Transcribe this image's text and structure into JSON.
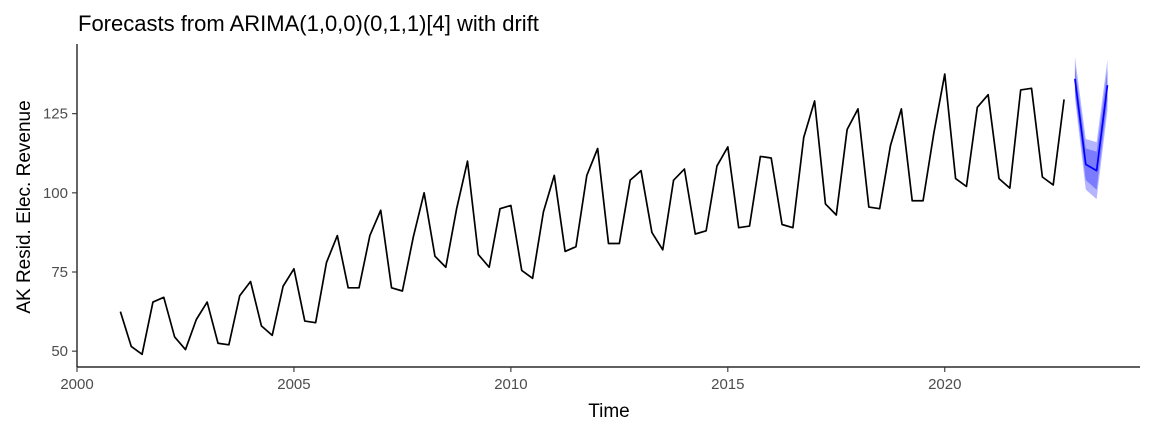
{
  "chart_data": {
    "type": "line",
    "title": "Forecasts from ARIMA(1,0,0)(0,1,1)[4] with drift",
    "xlabel": "Time",
    "ylabel": "AK Resid. Elec. Revenue",
    "xlim": [
      2000,
      2024.5
    ],
    "ylim": [
      45,
      147
    ],
    "x_ticks": [
      2000,
      2005,
      2010,
      2015,
      2020
    ],
    "y_ticks": [
      50,
      75,
      100,
      125
    ],
    "grid": false,
    "legend": "none",
    "series": [
      {
        "role": "history",
        "color": "#000000",
        "start": 2001.0,
        "frequency": 4,
        "values": [
          62.5,
          51.5,
          49.0,
          65.5,
          67.0,
          54.5,
          50.5,
          60.0,
          65.5,
          52.5,
          52.0,
          67.5,
          72.0,
          58.0,
          55.0,
          70.5,
          76.0,
          59.5,
          59.0,
          78.0,
          86.5,
          70.0,
          70.0,
          86.5,
          94.5,
          70.0,
          69.0,
          86.0,
          100.0,
          80.0,
          76.5,
          95.0,
          110.0,
          80.5,
          76.5,
          95.0,
          96.0,
          75.5,
          73.0,
          94.0,
          105.5,
          81.5,
          83.0,
          105.5,
          114.0,
          84.0,
          84.0,
          104.0,
          107.0,
          87.5,
          82.0,
          104.0,
          107.5,
          87.0,
          88.0,
          108.5,
          114.5,
          89.0,
          89.5,
          111.5,
          111.0,
          90.0,
          89.0,
          117.5,
          129.0,
          96.5,
          93.0,
          120.0,
          126.5,
          95.5,
          95.0,
          115.0,
          126.5,
          97.5,
          97.5,
          119.0,
          137.5,
          104.5,
          102.0,
          127.0,
          131.0,
          104.5,
          101.5,
          132.5,
          133.0,
          105.0,
          102.5,
          129.5
        ]
      },
      {
        "role": "forecast",
        "color": "#0000ff",
        "start": 2023.0,
        "frequency": 4,
        "values": [
          136.0,
          109.0,
          107.0,
          134.0
        ],
        "interval_80": {
          "color": "#7b7bff",
          "lower": [
            132.0,
            104.0,
            101.0,
            129.0
          ],
          "upper": [
            140.0,
            114.0,
            113.0,
            139.0
          ]
        },
        "interval_95": {
          "color": "#b5b5ff",
          "lower": [
            130.0,
            101.0,
            98.0,
            126.0
          ],
          "upper": [
            143.0,
            117.0,
            116.0,
            142.0
          ]
        }
      }
    ]
  }
}
